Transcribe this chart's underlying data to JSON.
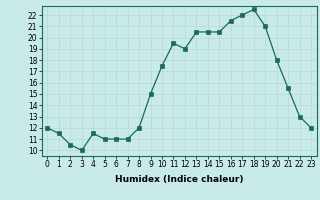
{
  "x": [
    0,
    1,
    2,
    3,
    4,
    5,
    6,
    7,
    8,
    9,
    10,
    11,
    12,
    13,
    14,
    15,
    16,
    17,
    18,
    19,
    20,
    21,
    22,
    23
  ],
  "y": [
    12,
    11.5,
    10.5,
    10,
    11.5,
    11,
    11,
    11,
    12,
    15,
    17.5,
    19.5,
    19,
    20.5,
    20.5,
    20.5,
    21.5,
    22,
    22.5,
    21,
    18,
    15.5,
    13,
    12
  ],
  "line_color": "#1a6b5a",
  "marker_color": "#1a6b5a",
  "bg_color": "#c8eae8",
  "grid_color": "#b8d8d4",
  "axis_color": "#1a6b5a",
  "xlabel": "Humidex (Indice chaleur)",
  "xlim": [
    -0.5,
    23.5
  ],
  "ylim": [
    9.5,
    22.8
  ],
  "yticks": [
    10,
    11,
    12,
    13,
    14,
    15,
    16,
    17,
    18,
    19,
    20,
    21,
    22
  ],
  "xticks": [
    0,
    1,
    2,
    3,
    4,
    5,
    6,
    7,
    8,
    9,
    10,
    11,
    12,
    13,
    14,
    15,
    16,
    17,
    18,
    19,
    20,
    21,
    22,
    23
  ],
  "tick_fontsize": 5.5,
  "label_fontsize": 6.5
}
